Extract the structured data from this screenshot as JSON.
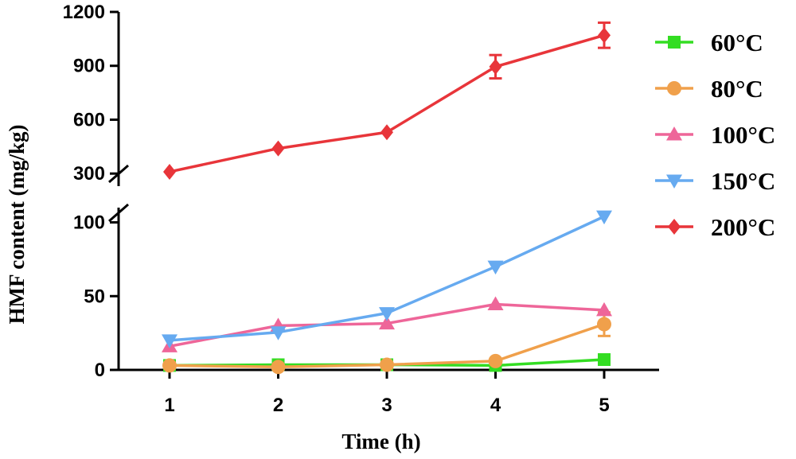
{
  "chart_data": {
    "type": "line",
    "title": "",
    "xlabel": "Time (h)",
    "ylabel": "HMF content (mg/kg)",
    "x": [
      1,
      2,
      3,
      4,
      5
    ],
    "x_ticks": [
      "1",
      "2",
      "3",
      "4",
      "5"
    ],
    "y_axis_broken": true,
    "y_lower_segment": {
      "ylim": [
        0,
        110
      ],
      "ticks": [
        "0",
        "50",
        "100"
      ]
    },
    "y_upper_segment": {
      "ylim": [
        230,
        1200
      ],
      "ticks": [
        "300",
        "600",
        "900",
        "1200"
      ]
    },
    "legend_position": "right",
    "series": [
      {
        "name": "60°C",
        "color": "#33dd22",
        "marker": "square",
        "values": [
          3,
          3.5,
          3.5,
          3,
          7
        ],
        "errors": [
          0,
          0,
          0,
          0,
          0
        ]
      },
      {
        "name": "80°C",
        "color": "#f0a04b",
        "marker": "circle",
        "values": [
          3,
          2,
          3.5,
          6,
          31
        ],
        "errors": [
          0,
          0,
          0,
          0,
          8
        ]
      },
      {
        "name": "100°C",
        "color": "#ee6699",
        "marker": "triangle-up",
        "values": [
          16,
          30,
          31.5,
          44.5,
          40.5
        ],
        "errors": [
          0,
          0,
          0,
          0,
          0
        ]
      },
      {
        "name": "150°C",
        "color": "#66aaf0",
        "marker": "triangle-down",
        "values": [
          20,
          25.5,
          38.5,
          70,
          104
        ],
        "errors": [
          0,
          0,
          0,
          0,
          0
        ]
      },
      {
        "name": "200°C",
        "color": "#e8353a",
        "marker": "diamond",
        "values": [
          310,
          440,
          530,
          895,
          1070
        ],
        "errors": [
          0,
          0,
          0,
          65,
          70
        ]
      }
    ]
  }
}
